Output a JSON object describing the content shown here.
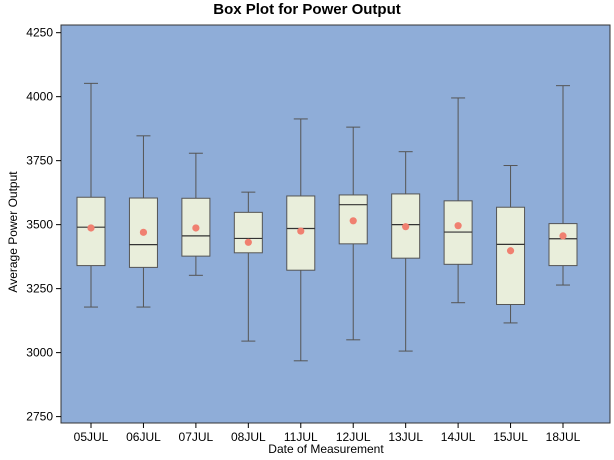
{
  "chart_data": {
    "type": "box",
    "title": "Box Plot for Power Output",
    "xlabel": "Date of Measurement",
    "ylabel": "Average Power Output",
    "ylim": [
      2725,
      4280
    ],
    "yticks": [
      2750,
      3000,
      3250,
      3500,
      3750,
      4000,
      4250
    ],
    "ytick_labels": [
      "2750",
      "3000",
      "3250",
      "3500",
      "3750",
      "4000",
      "4250"
    ],
    "categories": [
      "05JUL",
      "06JUL",
      "07JUL",
      "08JUL",
      "11JUL",
      "12JUL",
      "13JUL",
      "14JUL",
      "15JUL",
      "18JUL"
    ],
    "boxes": [
      {
        "min": 3178,
        "q1": 3340,
        "median": 3490,
        "q3": 3607,
        "max": 4052,
        "mean": 3487
      },
      {
        "min": 3178,
        "q1": 3333,
        "median": 3422,
        "q3": 3604,
        "max": 3847,
        "mean": 3470
      },
      {
        "min": 3302,
        "q1": 3377,
        "median": 3456,
        "q3": 3603,
        "max": 3779,
        "mean": 3487
      },
      {
        "min": 3045,
        "q1": 3390,
        "median": 3446,
        "q3": 3548,
        "max": 3627,
        "mean": 3431
      },
      {
        "min": 2968,
        "q1": 3322,
        "median": 3485,
        "q3": 3612,
        "max": 3913,
        "mean": 3475
      },
      {
        "min": 3050,
        "q1": 3425,
        "median": 3578,
        "q3": 3616,
        "max": 3881,
        "mean": 3515
      },
      {
        "min": 3006,
        "q1": 3369,
        "median": 3500,
        "q3": 3620,
        "max": 3785,
        "mean": 3492
      },
      {
        "min": 3195,
        "q1": 3345,
        "median": 3471,
        "q3": 3593,
        "max": 3995,
        "mean": 3496
      },
      {
        "min": 3116,
        "q1": 3188,
        "median": 3423,
        "q3": 3568,
        "max": 3731,
        "mean": 3398
      },
      {
        "min": 3264,
        "q1": 3340,
        "median": 3445,
        "q3": 3504,
        "max": 4043,
        "mean": 3456
      }
    ],
    "grid": false,
    "colors": {
      "plot_background": "#8fadd8",
      "box_fill": "#e9eedb",
      "mean_marker": "#f08070",
      "outline": "#555555"
    }
  }
}
